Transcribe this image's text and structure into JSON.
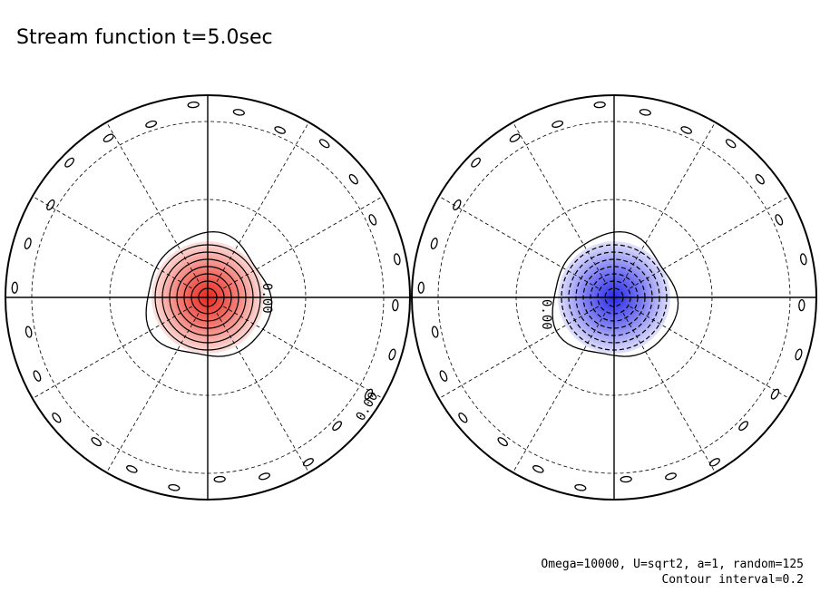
{
  "title": "Stream function t=5.0sec",
  "footer": {
    "line1": "Omega=10000, U=sqrt2, a=1, random=125",
    "line2": "Contour interval=0.2"
  },
  "contour_labels": [
    "0.00",
    "0.00",
    "0.00"
  ]
}
